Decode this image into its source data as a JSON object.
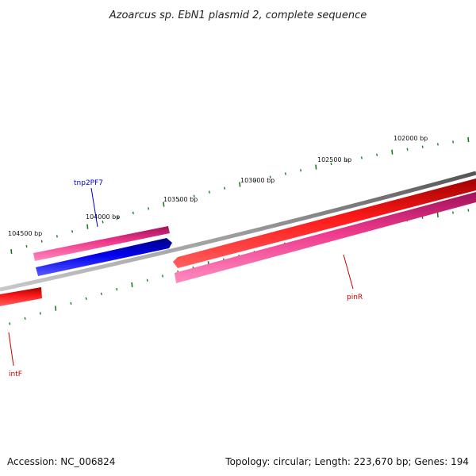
{
  "title": "Azoarcus sp. EbN1 plasmid 2, complete sequence",
  "footer": {
    "accession": "Accession: NC_006824",
    "topology": "Topology: circular; Length: 223,670 bp; Genes: 194"
  },
  "position_labels": [
    "102000 bp",
    "102500 bp",
    "103000 bp",
    "103500 bp",
    "104000 bp",
    "104500 bp"
  ],
  "genes": [
    {
      "name": "tnp2PF7",
      "color": "#0000cc",
      "feature_color": "#0000ee",
      "strand": "reverse"
    },
    {
      "name": "pinR",
      "color": "#cc0000",
      "feature_color": "#dd0000",
      "strand": "reverse"
    },
    {
      "name": "intF",
      "color": "#cc0000",
      "feature_color": "#dd0000",
      "strand": "forward"
    }
  ],
  "colors": {
    "backbone": "#808080",
    "cds_track": "#ee3a8c",
    "tick": "#1a7a1a"
  }
}
